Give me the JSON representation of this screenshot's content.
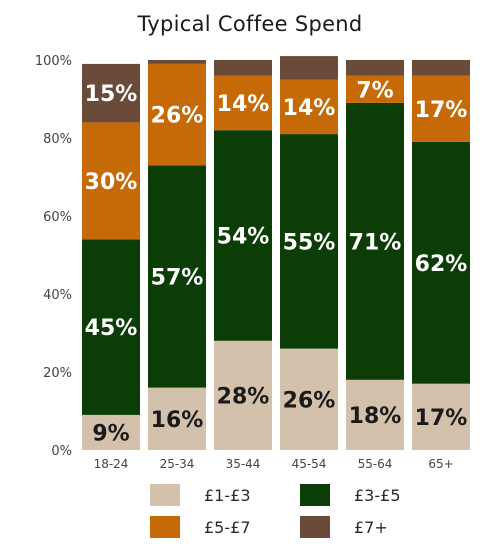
{
  "chart_data": {
    "type": "bar",
    "stacked": true,
    "title": "Typical Coffee Spend",
    "categories": [
      "18-24",
      "25-34",
      "35-44",
      "45-54",
      "55-64",
      "65+"
    ],
    "series": [
      {
        "name": "£1-£3",
        "color": "#d3c1ab",
        "values": [
          9,
          16,
          28,
          26,
          18,
          17
        ],
        "labels": [
          "9%",
          "16%",
          "28%",
          "26%",
          "18%",
          "17%"
        ]
      },
      {
        "name": "£3-£5",
        "color": "#0c3d06",
        "values": [
          45,
          57,
          54,
          55,
          71,
          62
        ],
        "labels": [
          "45%",
          "57%",
          "54%",
          "55%",
          "71%",
          "62%"
        ]
      },
      {
        "name": "£5-£7",
        "color": "#c56a06",
        "values": [
          30,
          26,
          14,
          14,
          7,
          17
        ],
        "labels": [
          "30%",
          "26%",
          "14%",
          "14%",
          "7%",
          "17%"
        ]
      },
      {
        "name": "£7+",
        "color": "#6a4a38",
        "values": [
          15,
          1,
          4,
          6,
          4,
          4
        ],
        "labels": [
          "15%",
          "",
          "",
          "",
          "",
          ""
        ]
      }
    ],
    "y_ticks": [
      "0%",
      "20%",
      "40%",
      "60%",
      "80%",
      "100%"
    ],
    "ylim": [
      0,
      100
    ],
    "grid": false,
    "legend_position": "bottom"
  }
}
